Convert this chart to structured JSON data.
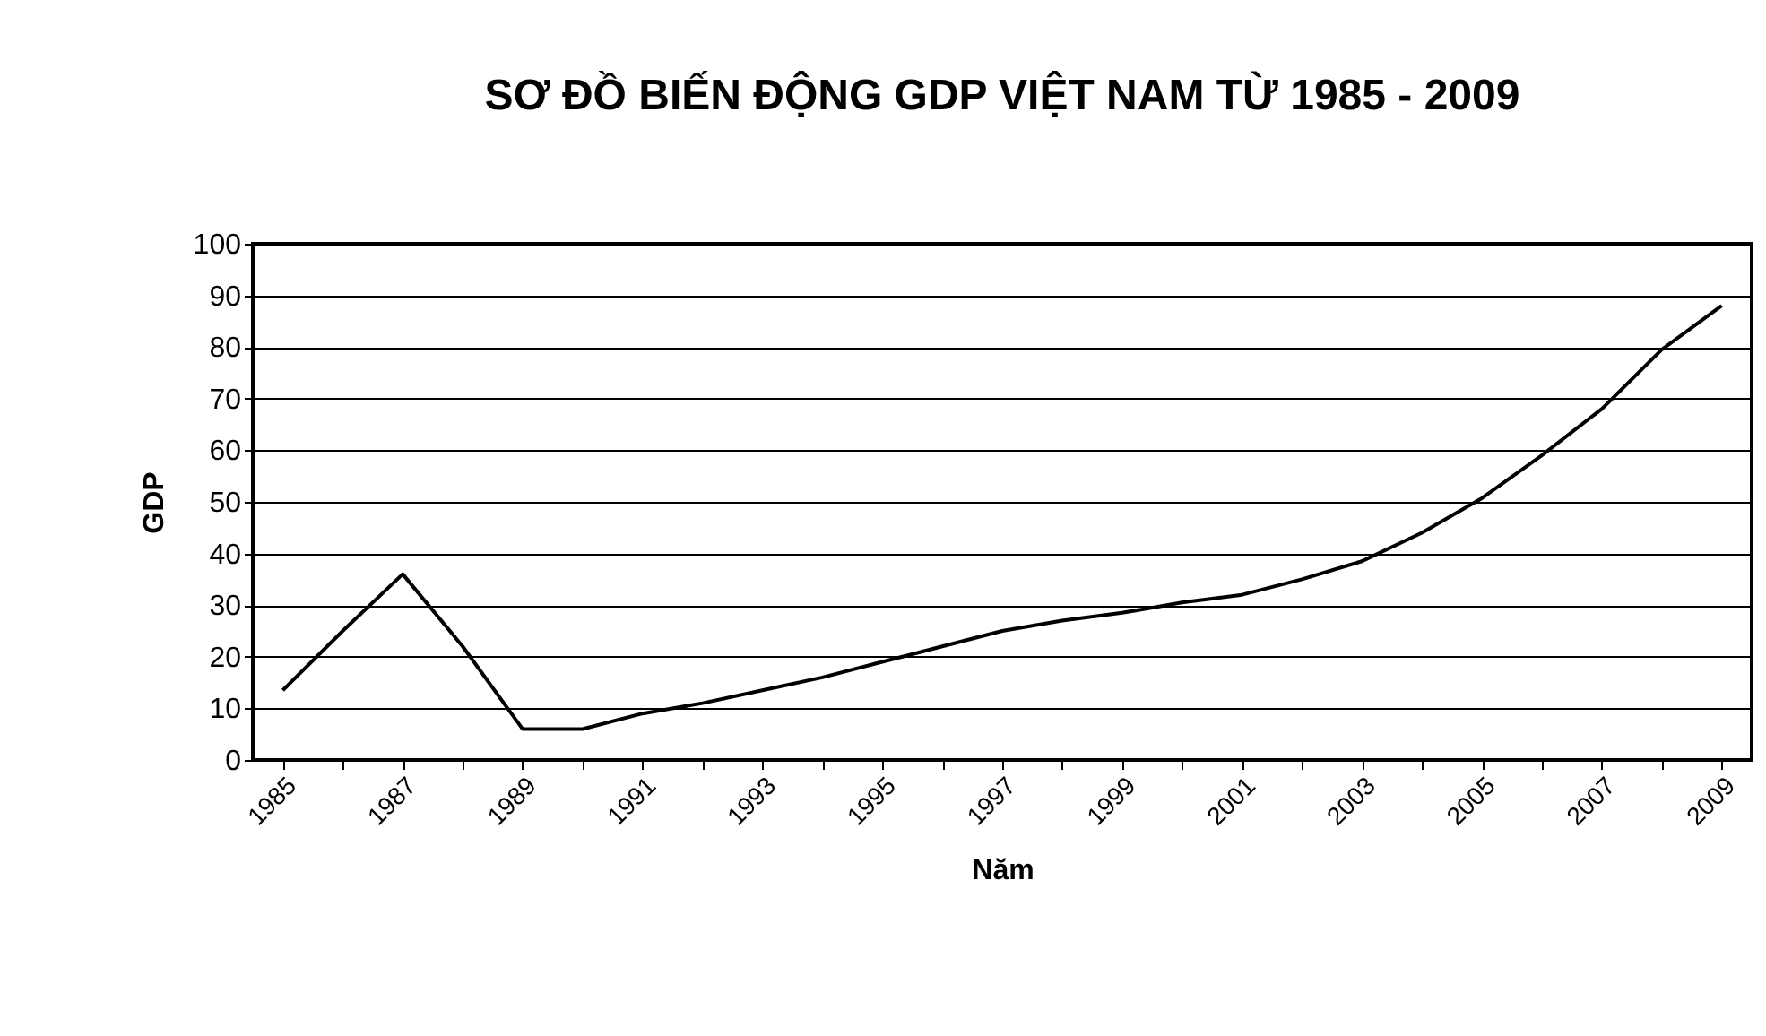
{
  "chart_data": {
    "type": "line",
    "title": "SƠ ĐỒ BIẾN ĐỘNG GDP VIỆT NAM TỪ 1985 - 2009",
    "xlabel": "Năm",
    "ylabel": "GDP",
    "categories": [
      "1985",
      null,
      "1987",
      null,
      "1989",
      null,
      "1991",
      null,
      "1993",
      null,
      "1995",
      null,
      "1997",
      null,
      "1999",
      null,
      "2001",
      null,
      "2003",
      null,
      "2005",
      null,
      "2007",
      null,
      "2009"
    ],
    "series": [
      {
        "color": "#000000",
        "values": [
          13.5,
          25,
          36,
          22,
          6,
          6,
          9,
          11,
          13.5,
          16,
          19,
          22,
          25,
          27,
          28.5,
          30.5,
          32,
          35,
          38.5,
          44,
          50.7,
          59,
          68,
          79.5,
          88
        ]
      }
    ],
    "ylim": [
      0,
      100
    ],
    "yticks": [
      0,
      10,
      20,
      30,
      40,
      50,
      60,
      70,
      80,
      90,
      100
    ],
    "grid": "y",
    "marker": "none",
    "line_style": "solid"
  }
}
